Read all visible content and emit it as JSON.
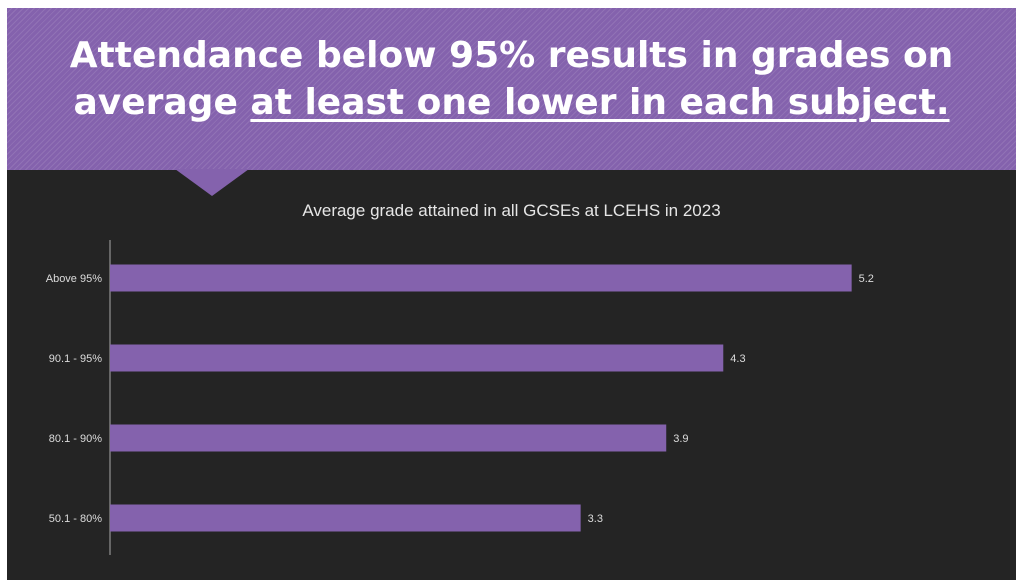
{
  "headline": {
    "line1": "Attendance below 95% results in grades on",
    "line2_plain": "average ",
    "line2_underlined": "at least one lower in each subject."
  },
  "colors": {
    "banner": "#8462ad",
    "bar": "#8462ad",
    "background": "#242424"
  },
  "chart_data": {
    "type": "bar",
    "orientation": "horizontal",
    "title": "Average grade attained in all GCSEs at LCEHS in 2023",
    "categories": [
      "Above 95%",
      "90.1 - 95%",
      "80.1 - 90%",
      "50.1 - 80%"
    ],
    "values": [
      5.2,
      4.3,
      3.9,
      3.3
    ],
    "data_labels": [
      "5.2",
      "4.3",
      "3.9",
      "3.3"
    ],
    "xlim": [
      0,
      6.1
    ],
    "grid": false,
    "legend": "none"
  }
}
